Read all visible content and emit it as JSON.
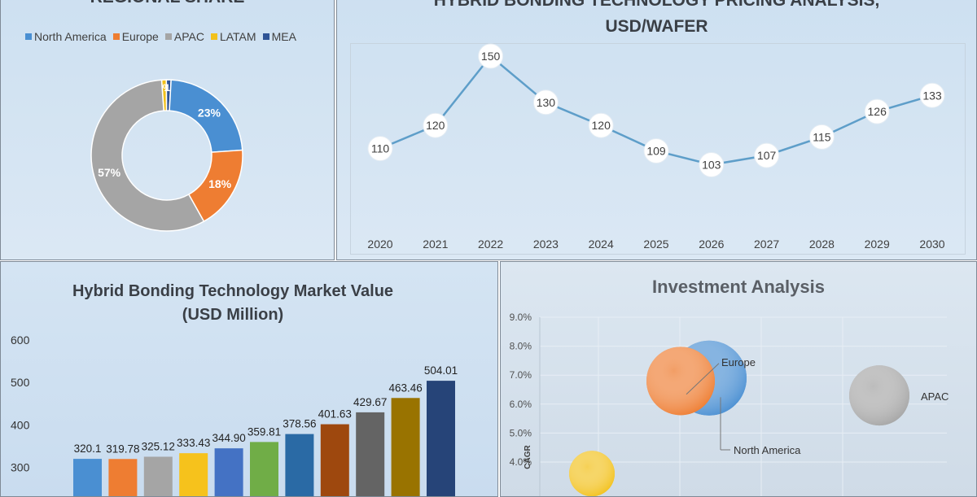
{
  "colors": {
    "north_america": "#4a8fd2",
    "europe": "#ee7d32",
    "apac": "#a5a5a5",
    "latam": "#f2c11c",
    "mea": "#2f5496",
    "line": "#5e9ec9"
  },
  "regional_share": {
    "title": "REGIONAL SHARE",
    "chart_data": {
      "type": "pie",
      "title": "REGIONAL SHARE",
      "categories": [
        "North America",
        "Europe",
        "APAC",
        "LATAM",
        "MEA"
      ],
      "values": [
        23,
        18,
        57,
        1,
        1
      ],
      "labels": [
        "23%",
        "18%",
        "57%",
        "1%",
        "1%"
      ],
      "legend": "top",
      "donut": true
    }
  },
  "pricing": {
    "title_line1": "HYBRID BONDING TECHNOLOGY PRICING ANALYSIS,",
    "title_line2": "USD/WAFER",
    "chart_data": {
      "type": "line",
      "title": "HYBRID BONDING TECHNOLOGY PRICING ANALYSIS, USD/WAFER",
      "categories": [
        "2020",
        "2021",
        "2022",
        "2023",
        "2024",
        "2025",
        "2026",
        "2027",
        "2028",
        "2029",
        "2030"
      ],
      "values": [
        110,
        120,
        150,
        130,
        120,
        109,
        103,
        107,
        115,
        126,
        133
      ],
      "data_labels": true,
      "grid": false
    }
  },
  "market_value": {
    "title_line1": "Hybrid Bonding Technology Market Value",
    "title_line2": "(USD Million)",
    "chart_data": {
      "type": "bar",
      "title": "Hybrid Bonding Technology Market Value (USD Million)",
      "yticks": [
        "600",
        "500",
        "400",
        "300"
      ],
      "ylim": [
        0,
        600
      ],
      "values": [
        320.1,
        319.78,
        325.12,
        333.43,
        344.9,
        359.81,
        378.56,
        401.63,
        429.67,
        463.46,
        504.01
      ],
      "labels": [
        "320.1",
        "319.78",
        "325.12",
        "333.43",
        "344.90",
        "359.81",
        "378.56",
        "401.63",
        "429.67",
        "463.46",
        "504.01"
      ],
      "bar_colors": [
        "#4a8fd2",
        "#ee7d32",
        "#a5a5a5",
        "#f6c21c",
        "#4472c4",
        "#70ad47",
        "#2a6aa5",
        "#9e480e",
        "#646464",
        "#997300",
        "#264478"
      ]
    }
  },
  "investment": {
    "title": "Investment Analysis",
    "chart_data": {
      "type": "scatter",
      "title": "Investment Analysis",
      "ylabel": "CAGR",
      "yticks": [
        "9.0%",
        "8.0%",
        "7.0%",
        "6.0%",
        "5.0%",
        "4.0%"
      ],
      "ylim": [
        3.0,
        9.0
      ],
      "bubbles": [
        {
          "name": "Europe",
          "y": 6.9,
          "color": "#4a8fd2"
        },
        {
          "name": "North America",
          "y": 6.8,
          "color": "#ee7d32"
        },
        {
          "name": "APAC",
          "y": 6.3,
          "color": "#a5a5a5"
        },
        {
          "name": "",
          "y": 3.6,
          "color": "#f2c11c"
        }
      ]
    }
  }
}
